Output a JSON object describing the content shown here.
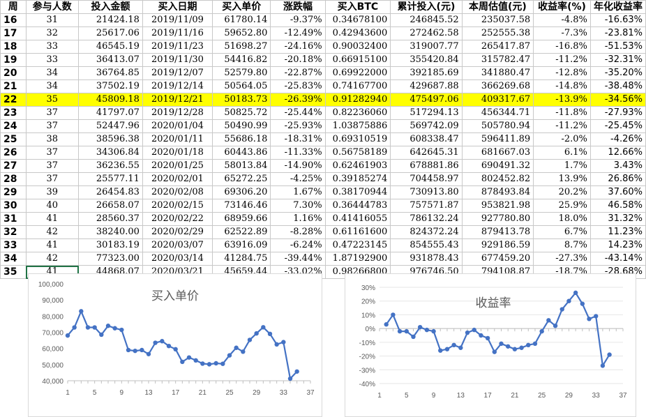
{
  "table": {
    "headers": [
      "周",
      "参与人数",
      "投入金额",
      "买入日期",
      "买入单价",
      "涨跌幅",
      "买入BTC",
      "累计投入(元)",
      "本周估值(元)",
      "收益率(%)",
      "年化收益率"
    ],
    "highlight_week": "22",
    "selected_cell": "35-participants",
    "rows": [
      [
        "16",
        "31",
        "21424.18",
        "2019/11/09",
        "61780.14",
        "-9.37%",
        "0.34678100",
        "246845.52",
        "235037.58",
        "-4.8%",
        "-16.63%"
      ],
      [
        "17",
        "32",
        "25617.06",
        "2019/11/16",
        "59652.80",
        "-12.49%",
        "0.42943600",
        "272462.58",
        "252555.38",
        "-7.3%",
        "-23.81%"
      ],
      [
        "18",
        "33",
        "46545.19",
        "2019/11/23",
        "51698.27",
        "-24.16%",
        "0.90032400",
        "319007.77",
        "265417.87",
        "-16.8%",
        "-51.53%"
      ],
      [
        "19",
        "33",
        "36413.07",
        "2019/11/30",
        "54416.82",
        "-20.18%",
        "0.66915100",
        "355420.84",
        "315782.47",
        "-11.2%",
        "-32.31%"
      ],
      [
        "20",
        "34",
        "36764.85",
        "2019/12/07",
        "52579.80",
        "-22.87%",
        "0.69922000",
        "392185.69",
        "341880.47",
        "-12.8%",
        "-35.20%"
      ],
      [
        "21",
        "34",
        "37502.19",
        "2019/12/14",
        "50564.05",
        "-25.83%",
        "0.74167700",
        "429687.88",
        "366269.68",
        "-14.8%",
        "-38.48%"
      ],
      [
        "22",
        "35",
        "45809.18",
        "2019/12/21",
        "50183.73",
        "-26.39%",
        "0.91282940",
        "475497.06",
        "409317.67",
        "-13.9%",
        "-34.56%"
      ],
      [
        "23",
        "37",
        "41797.07",
        "2019/12/28",
        "50825.72",
        "-25.44%",
        "0.82236060",
        "517294.13",
        "456344.71",
        "-11.8%",
        "-27.93%"
      ],
      [
        "24",
        "37",
        "52447.96",
        "2020/01/04",
        "50490.99",
        "-25.93%",
        "1.03875886",
        "569742.09",
        "505780.94",
        "-11.2%",
        "-25.45%"
      ],
      [
        "25",
        "38",
        "38596.38",
        "2020/01/11",
        "55686.18",
        "-18.31%",
        "0.69310519",
        "608338.47",
        "596411.89",
        "-2.0%",
        "-4.26%"
      ],
      [
        "26",
        "37",
        "34306.84",
        "2020/01/18",
        "60443.86",
        "-11.33%",
        "0.56758189",
        "642645.31",
        "681667.03",
        "6.1%",
        "12.66%"
      ],
      [
        "27",
        "37",
        "36236.55",
        "2020/01/25",
        "58013.84",
        "-14.90%",
        "0.62461903",
        "678881.86",
        "690491.32",
        "1.7%",
        "3.43%"
      ],
      [
        "28",
        "37",
        "25577.11",
        "2020/02/01",
        "65272.25",
        "-4.25%",
        "0.39185274",
        "704458.97",
        "802452.82",
        "13.9%",
        "26.86%"
      ],
      [
        "29",
        "39",
        "26454.83",
        "2020/02/08",
        "69306.20",
        "1.67%",
        "0.38170944",
        "730913.80",
        "878493.84",
        "20.2%",
        "37.60%"
      ],
      [
        "30",
        "40",
        "26658.07",
        "2020/02/15",
        "73146.46",
        "7.30%",
        "0.36444783",
        "757571.87",
        "953821.98",
        "25.9%",
        "46.58%"
      ],
      [
        "31",
        "41",
        "28560.37",
        "2020/02/22",
        "68959.66",
        "1.16%",
        "0.41416055",
        "786132.24",
        "927780.80",
        "18.0%",
        "31.32%"
      ],
      [
        "32",
        "42",
        "38240.00",
        "2020/02/29",
        "62522.89",
        "-8.28%",
        "0.61161600",
        "824372.24",
        "879413.78",
        "6.7%",
        "11.23%"
      ],
      [
        "33",
        "41",
        "30183.19",
        "2020/03/07",
        "63916.09",
        "-6.24%",
        "0.47223145",
        "854555.43",
        "929186.59",
        "8.7%",
        "14.23%"
      ],
      [
        "34",
        "42",
        "77323.00",
        "2020/03/14",
        "41284.75",
        "-39.44%",
        "1.87192900",
        "931878.43",
        "677459.20",
        "-27.3%",
        "-43.14%"
      ],
      [
        "35",
        "41",
        "44868.07",
        "2020/03/21",
        "45659.44",
        "-33.02%",
        "0.98266800",
        "976746.50",
        "794108.87",
        "-18.7%",
        "-28.68%"
      ]
    ]
  },
  "chart_price": {
    "type": "line",
    "title": "买入单价",
    "ylim": [
      40000,
      100000
    ],
    "yticks": [
      "40,000",
      "50,000",
      "60,000",
      "70,000",
      "80,000",
      "90,000",
      "100,000"
    ],
    "xlim": [
      1,
      37
    ],
    "xticks": [
      "1",
      "5",
      "9",
      "13",
      "17",
      "21",
      "25",
      "29",
      "33",
      "37"
    ],
    "color": "#4472C4",
    "x": [
      1,
      2,
      3,
      4,
      5,
      6,
      7,
      8,
      9,
      10,
      11,
      12,
      13,
      14,
      15,
      16,
      17,
      18,
      19,
      20,
      21,
      22,
      23,
      24,
      25,
      26,
      27,
      28,
      29,
      30,
      31,
      32,
      33,
      34,
      35
    ],
    "values": [
      68000,
      73000,
      83000,
      73000,
      73000,
      68500,
      74000,
      72500,
      71500,
      59000,
      58500,
      59000,
      56500,
      63500,
      64500,
      61500,
      59500,
      51700,
      54400,
      52600,
      50600,
      50200,
      50800,
      50500,
      55700,
      60400,
      58000,
      65300,
      69300,
      73100,
      69000,
      62500,
      63900,
      41300,
      45700
    ]
  },
  "chart_return": {
    "type": "line",
    "title": "收益率",
    "ylim": [
      -0.4,
      0.3
    ],
    "yticks": [
      "-40%",
      "-30%",
      "-20%",
      "-10%",
      "0%",
      "10%",
      "20%",
      "30%"
    ],
    "xlim": [
      1,
      37
    ],
    "xticks": [
      "1",
      "5",
      "9",
      "13",
      "17",
      "21",
      "25",
      "29",
      "33",
      "37"
    ],
    "color": "#4472C4",
    "x": [
      2,
      3,
      4,
      5,
      6,
      7,
      8,
      9,
      10,
      11,
      12,
      13,
      14,
      15,
      16,
      17,
      18,
      19,
      20,
      21,
      22,
      23,
      24,
      25,
      26,
      27,
      28,
      29,
      30,
      31,
      32,
      33,
      34,
      35
    ],
    "values": [
      0.03,
      0.1,
      -0.02,
      -0.02,
      -0.06,
      0.01,
      -0.01,
      -0.02,
      -0.16,
      -0.15,
      -0.12,
      -0.14,
      -0.03,
      -0.01,
      -0.05,
      -0.07,
      -0.17,
      -0.11,
      -0.13,
      -0.15,
      -0.14,
      -0.12,
      -0.11,
      -0.02,
      0.06,
      0.02,
      0.14,
      0.2,
      0.26,
      0.18,
      0.07,
      0.09,
      -0.27,
      -0.19
    ]
  }
}
